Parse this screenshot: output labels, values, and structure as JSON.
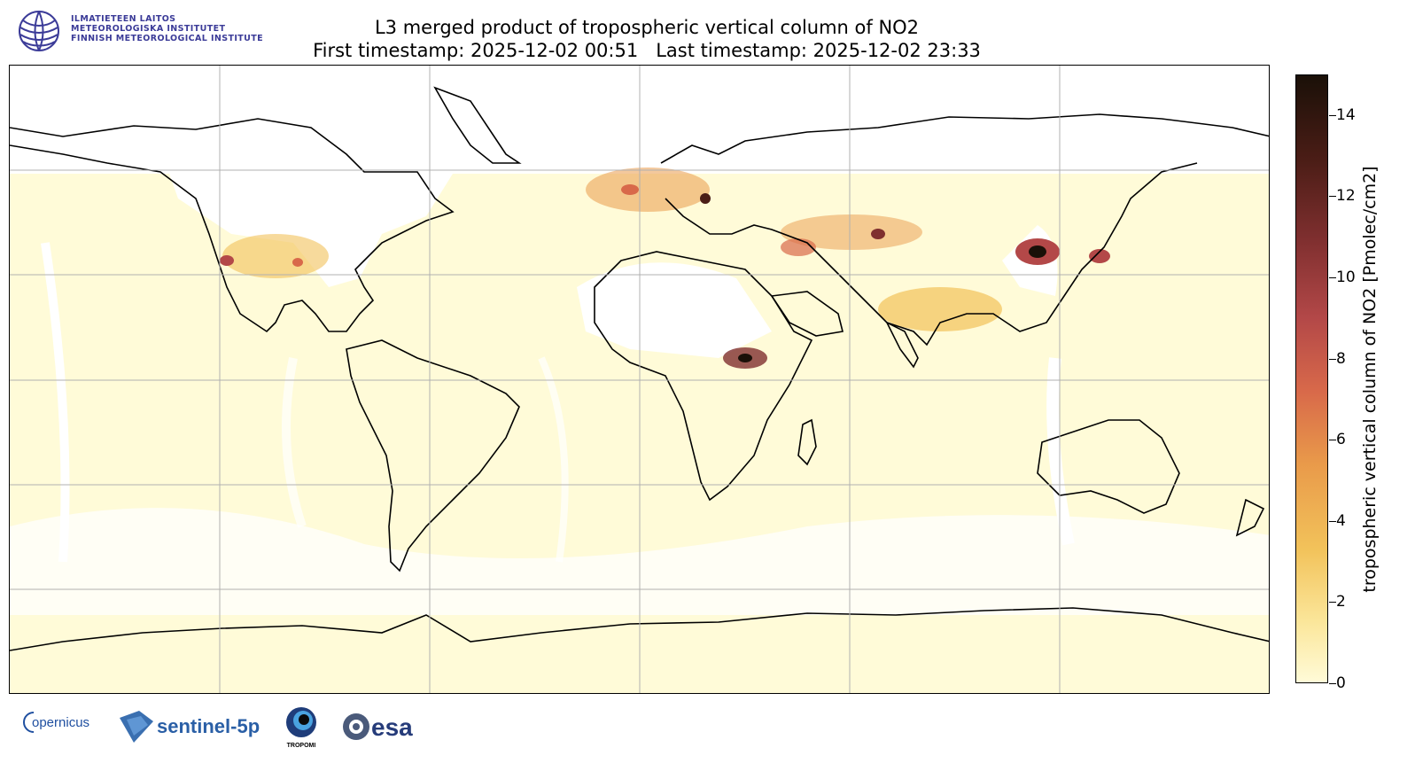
{
  "header": {
    "title": "L3 merged product of tropospheric vertical column of NO2",
    "subtitle": "First timestamp: 2025-12-02 00:51   Last timestamp: 2025-12-02 23:33"
  },
  "institute_logo": {
    "icon": "fmi-globe-logo",
    "lines": [
      "ILMATIETEEN LAITOS",
      "METEOROLOGISKA INSTITUTET",
      "FINNISH METEOROLOGICAL INSTITUTE"
    ],
    "color": "#3b3b98"
  },
  "map": {
    "projection": "plate carree (equirectangular)",
    "grid": true,
    "coastlines": true,
    "no_data_color": "#ffffff",
    "lon_range": [
      -180,
      180
    ],
    "lat_range": [
      -90,
      90
    ],
    "gridlines_lon": [
      -120,
      -60,
      0,
      60,
      120
    ],
    "gridlines_lat": [
      -60,
      -30,
      0,
      30,
      60
    ]
  },
  "colorbar": {
    "label": "tropospheric vertical column of NO2 [Pmolec/cm2]",
    "min": 0,
    "max": 15,
    "ticks": [
      "0",
      "2",
      "4",
      "6",
      "8",
      "10",
      "12",
      "14"
    ],
    "colormap": [
      "#fffbd8",
      "#fbe69a",
      "#f2c25a",
      "#e99a4a",
      "#d8694a",
      "#b34848",
      "#7f2f2f",
      "#4b1d16",
      "#1a1008"
    ]
  },
  "footer_logos": [
    {
      "name": "copernicus",
      "text": "opernicus"
    },
    {
      "name": "sentinel-5p",
      "text": "sentinel-5p"
    },
    {
      "name": "tropomi",
      "text": "TROPOMI"
    },
    {
      "name": "esa",
      "text": "esa"
    }
  ]
}
